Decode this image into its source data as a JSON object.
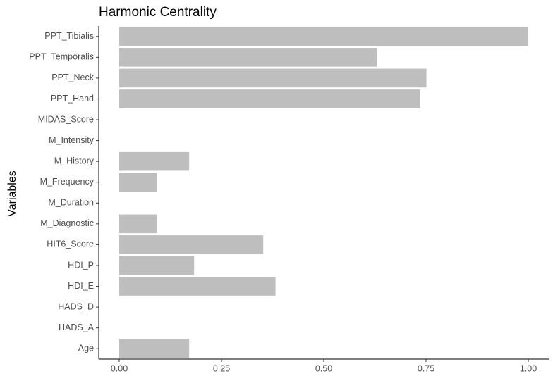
{
  "chart_data": {
    "type": "hbar",
    "title": "Harmonic Centrality",
    "y_label": "Variables",
    "categories": [
      "PPT_Tibialis",
      "PPT_Temporalis",
      "PPT_Neck",
      "PPT_Hand",
      "MIDAS_Score",
      "M_Intensity",
      "M_History",
      "M_Frequency",
      "M_Duration",
      "M_Diagnostic",
      "HIT6_Score",
      "HDI_P",
      "HDI_E",
      "HADS_D",
      "HADS_A",
      "Age"
    ],
    "values": [
      1.0,
      0.63,
      0.751,
      0.736,
      0,
      0,
      0.171,
      0.092,
      0,
      0.092,
      0.352,
      0.183,
      0.382,
      0,
      0,
      0.171
    ],
    "color": "#bebebe",
    "xlim": [
      -0.05,
      1.05
    ],
    "xticks": [
      {
        "value": 0,
        "label": "0.00"
      },
      {
        "value": 0.25,
        "label": "0.25"
      },
      {
        "value": 0.5,
        "label": "0.50"
      },
      {
        "value": 0.75,
        "label": "0.75"
      },
      {
        "value": 1,
        "label": "1.00"
      }
    ],
    "grid": false
  }
}
